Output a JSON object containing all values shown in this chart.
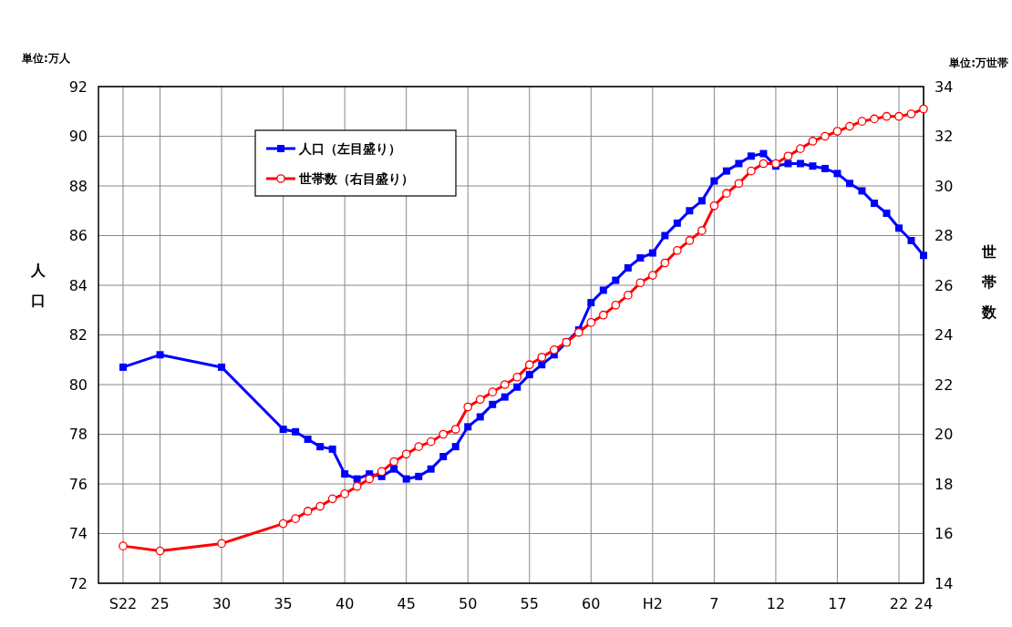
{
  "chart_data": {
    "type": "line",
    "ylabel": "人口",
    "y2label": "世帯数",
    "annotations": [
      "単位:万人",
      "単位:万世帯"
    ],
    "categories": [
      "S22",
      null,
      null,
      "25",
      null,
      null,
      null,
      null,
      "30",
      null,
      null,
      null,
      null,
      "35",
      null,
      null,
      null,
      null,
      "40",
      null,
      null,
      null,
      null,
      "45",
      null,
      null,
      null,
      null,
      "50",
      null,
      null,
      null,
      null,
      "55",
      null,
      null,
      null,
      null,
      "60",
      null,
      null,
      null,
      null,
      "H2",
      null,
      null,
      null,
      null,
      "7",
      null,
      null,
      null,
      null,
      "12",
      null,
      null,
      null,
      null,
      "17",
      null,
      null,
      null,
      null,
      "22",
      null,
      "24"
    ],
    "series": [
      {
        "name": "人口（左目盛り）",
        "color": "#0000ff",
        "marker": "square",
        "values": [
          80.7,
          null,
          null,
          81.2,
          null,
          null,
          null,
          null,
          80.7,
          null,
          null,
          null,
          null,
          78.2,
          78.1,
          77.8,
          77.5,
          77.4,
          76.4,
          76.2,
          76.4,
          76.3,
          76.6,
          76.2,
          76.3,
          76.6,
          77.1,
          77.5,
          78.3,
          78.7,
          79.2,
          79.5,
          79.9,
          80.4,
          80.8,
          81.2,
          81.7,
          82.2,
          83.3,
          83.8,
          84.2,
          84.7,
          85.1,
          85.3,
          86.0,
          86.5,
          87.0,
          87.4,
          88.2,
          88.6,
          88.9,
          89.2,
          89.3,
          88.8,
          88.9,
          88.9,
          88.8,
          88.7,
          88.5,
          88.1,
          87.8,
          87.3,
          86.9,
          86.3,
          85.8,
          85.2
        ]
      },
      {
        "name": "世帯数（右目盛り）",
        "color": "#ff0000",
        "marker": "circle",
        "axis": "y2",
        "values": [
          15.5,
          null,
          null,
          15.3,
          null,
          null,
          null,
          null,
          15.6,
          null,
          null,
          null,
          null,
          16.4,
          16.6,
          16.9,
          17.1,
          17.4,
          17.6,
          17.9,
          18.2,
          18.5,
          18.9,
          19.2,
          19.5,
          19.7,
          20.0,
          20.2,
          21.1,
          21.4,
          21.7,
          22.0,
          22.3,
          22.8,
          23.1,
          23.4,
          23.7,
          24.1,
          24.5,
          24.8,
          25.2,
          25.6,
          26.1,
          26.4,
          26.9,
          27.4,
          27.8,
          28.2,
          29.2,
          29.7,
          30.1,
          30.6,
          30.9,
          30.9,
          31.2,
          31.5,
          31.8,
          32.0,
          32.2,
          32.4,
          32.6,
          32.7,
          32.8,
          32.8,
          32.9,
          33.1
        ]
      }
    ],
    "ylim": [
      72,
      92
    ],
    "yticks": [
      72,
      74,
      76,
      78,
      80,
      82,
      84,
      86,
      88,
      90,
      92
    ],
    "y2lim": [
      14,
      34
    ],
    "y2ticks": [
      14,
      16,
      18,
      20,
      22,
      24,
      26,
      28,
      30,
      32,
      34
    ],
    "grid": true,
    "legend": "top left",
    "line_style": "solid"
  }
}
